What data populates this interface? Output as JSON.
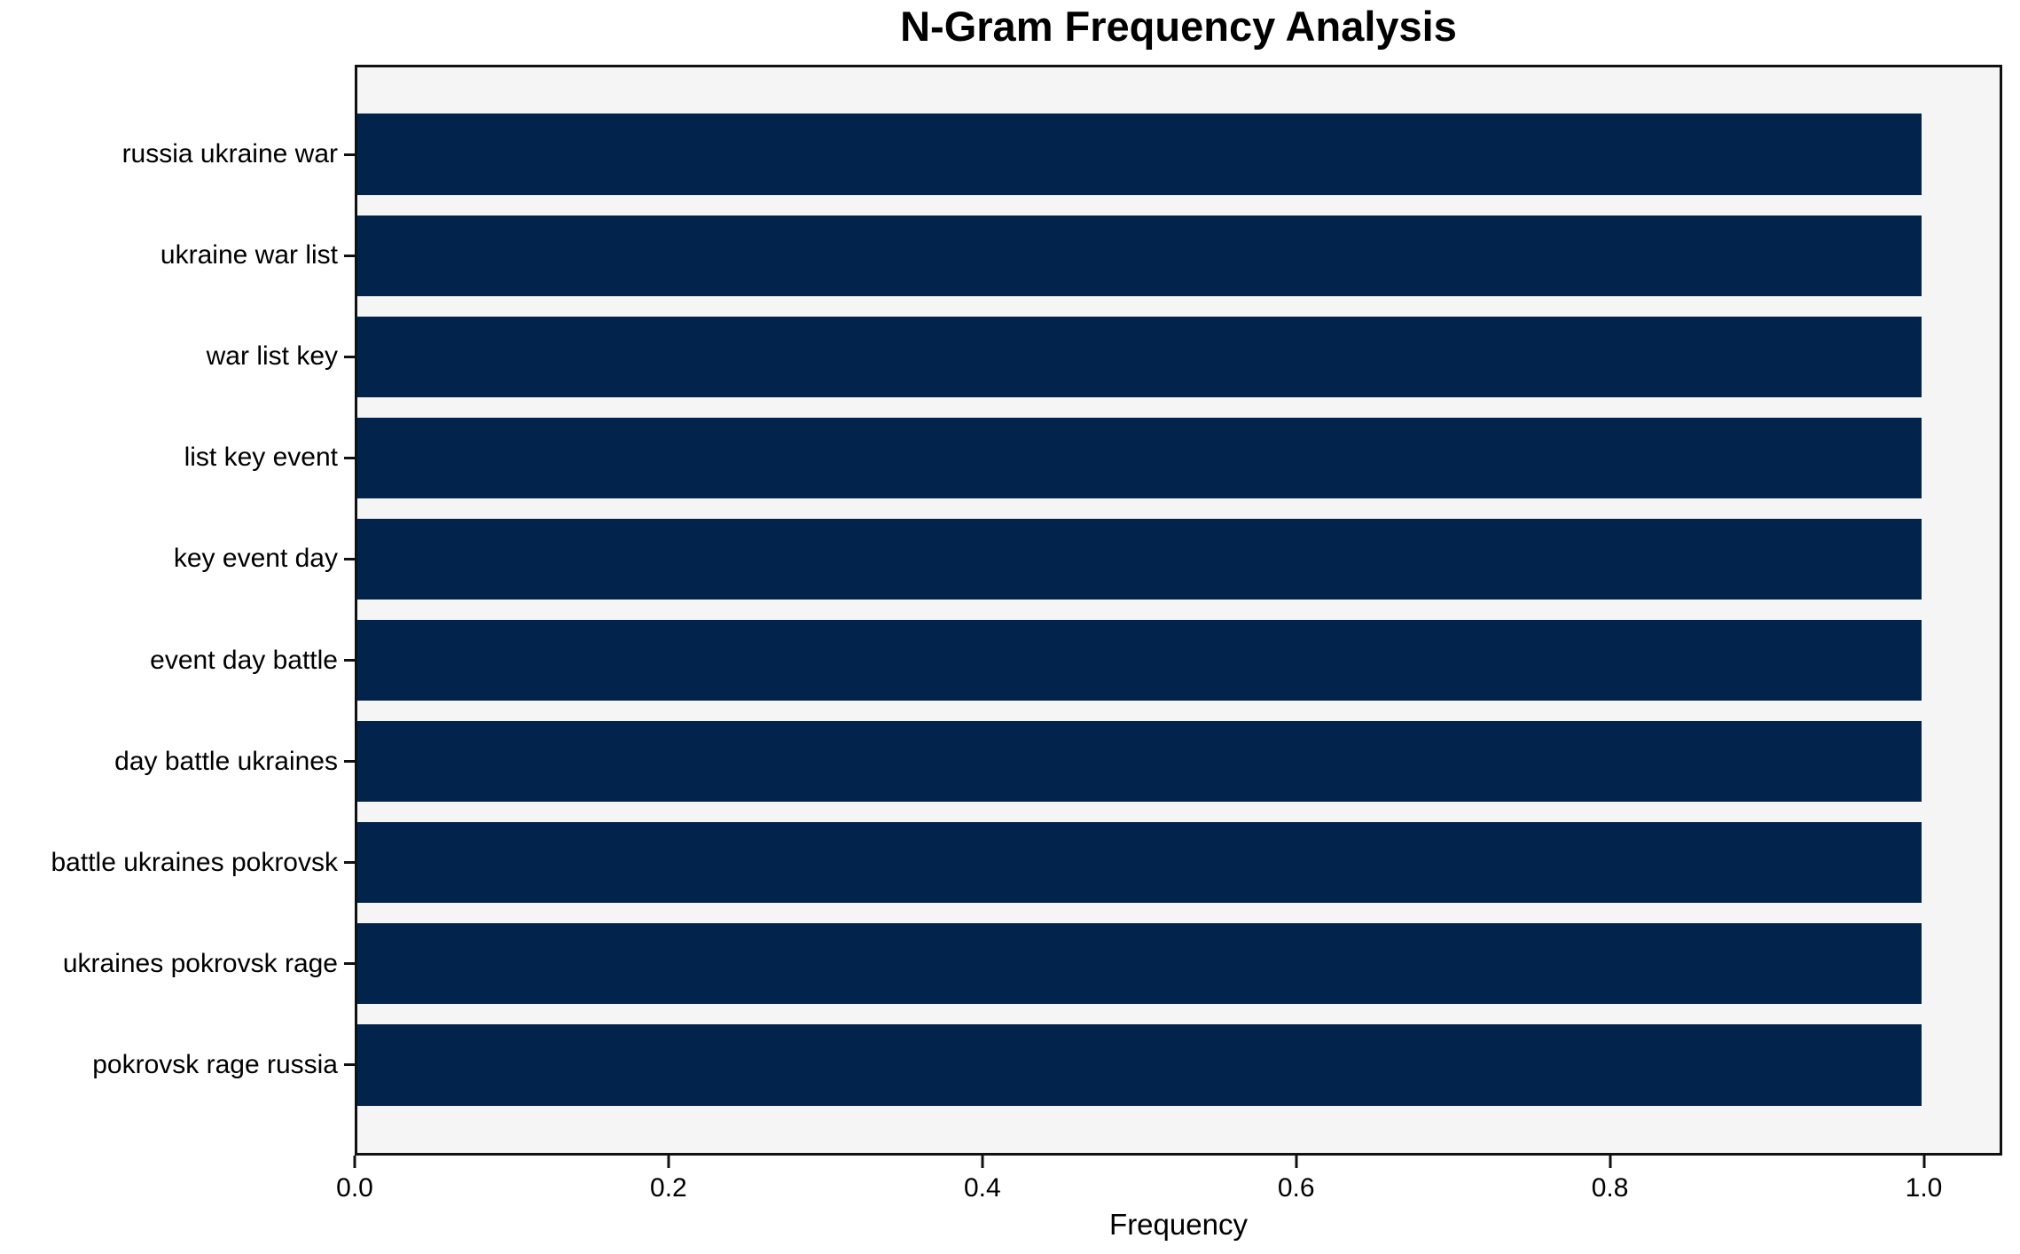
{
  "chart_data": {
    "type": "bar",
    "orientation": "horizontal",
    "title": "N-Gram Frequency Analysis",
    "xlabel": "Frequency",
    "ylabel": "",
    "categories": [
      "russia ukraine war",
      "ukraine war list",
      "war list key",
      "list key event",
      "key event day",
      "event day battle",
      "day battle ukraines",
      "battle ukraines pokrovsk",
      "ukraines pokrovsk rage",
      "pokrovsk rage russia"
    ],
    "values": [
      1.0,
      1.0,
      1.0,
      1.0,
      1.0,
      1.0,
      1.0,
      1.0,
      1.0,
      1.0
    ],
    "xlim": [
      0,
      1.05
    ],
    "xticks": [
      0.0,
      0.2,
      0.4,
      0.6,
      0.8,
      1.0
    ],
    "xtick_labels": [
      "0.0",
      "0.2",
      "0.4",
      "0.6",
      "0.8",
      "1.0"
    ],
    "grid": false,
    "legend": "none",
    "colors": {
      "bar": "#02234c",
      "plot_bg": "#f5f5f5",
      "figure_bg": "#ffffff",
      "spine": "#111111",
      "text": "#000000"
    }
  }
}
